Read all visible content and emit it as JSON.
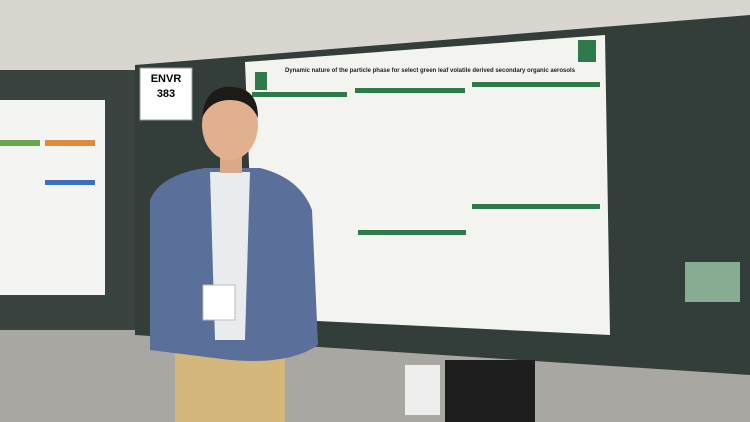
{
  "sign": {
    "label": "ENVR",
    "number": "383"
  },
  "poster": {
    "title": "Dynamic nature of the particle phase for select green leaf volatile derived secondary organic aerosols"
  }
}
